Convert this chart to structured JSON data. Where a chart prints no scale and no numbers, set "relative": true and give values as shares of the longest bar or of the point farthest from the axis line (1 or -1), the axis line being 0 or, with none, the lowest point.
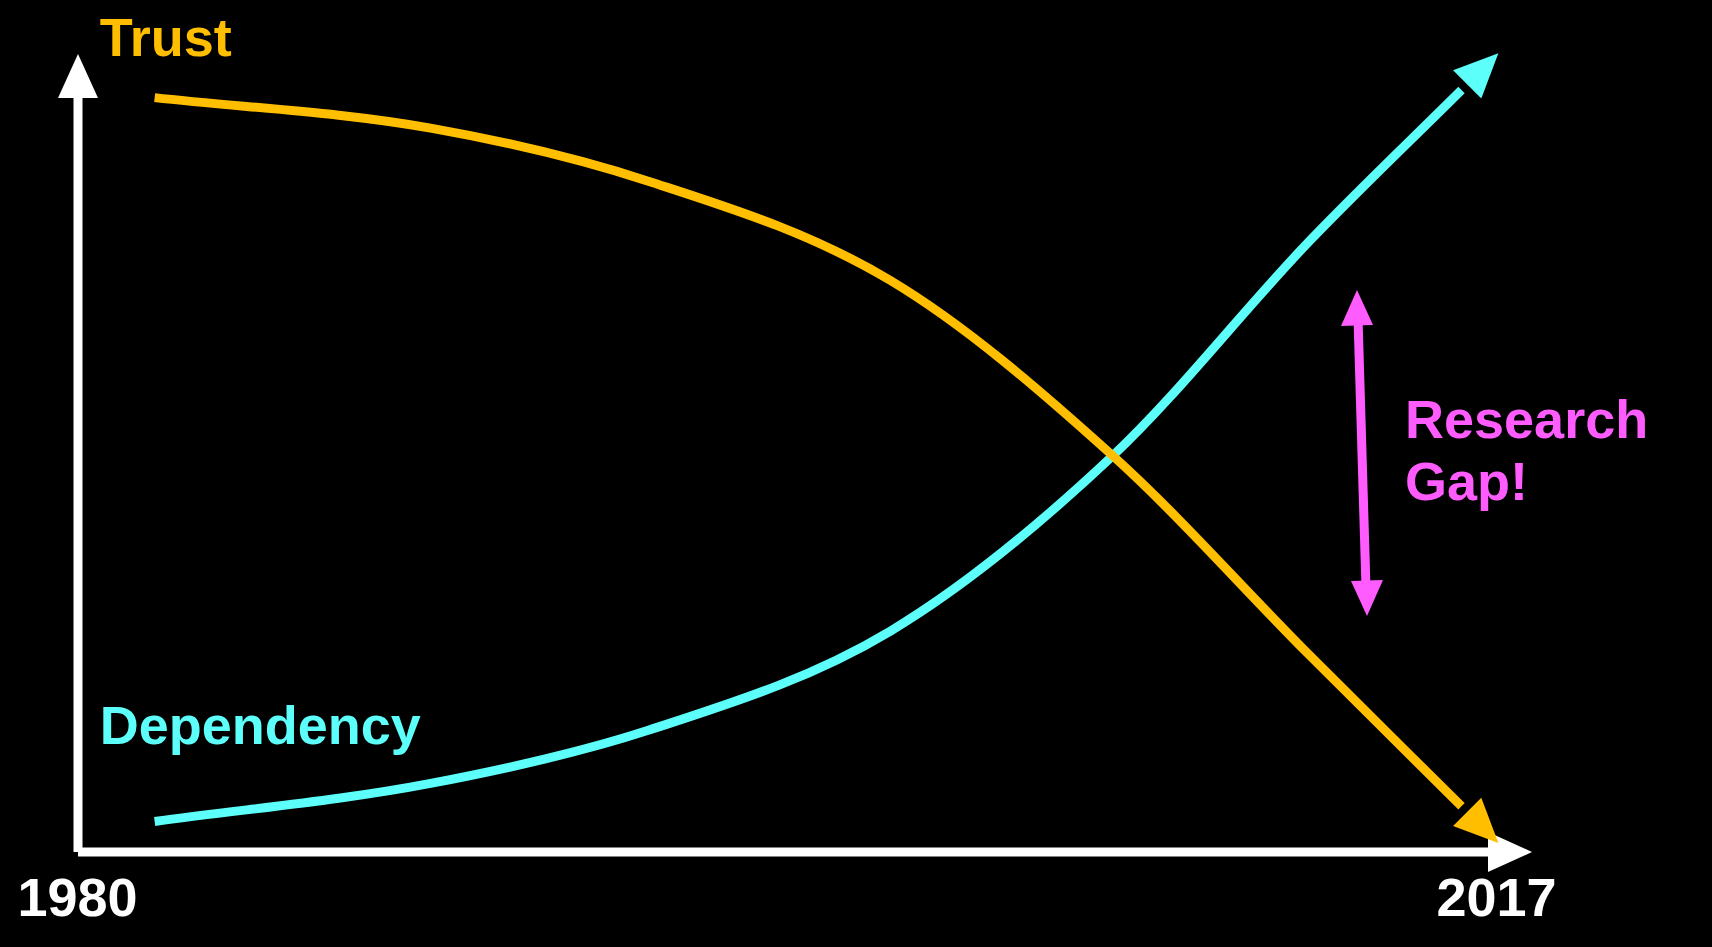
{
  "chart_data": {
    "type": "line",
    "relative": true,
    "xlim": [
      1980,
      2017
    ],
    "xticks": [
      1980,
      2017
    ],
    "grid": false,
    "legend": false,
    "marker": "none",
    "line_style": "solid",
    "annotations": [
      "Research Gap!"
    ],
    "series": [
      {
        "name": "Trust",
        "color": "#ffbf00",
        "x": [
          1982.0,
          1989.2,
          1994.9,
          2001.2,
          2007.0,
          2012.1,
          2016.1
        ],
        "values": [
          0.99,
          0.95,
          0.88,
          0.75,
          0.52,
          0.26,
          0.06
        ]
      },
      {
        "name": "Dependency",
        "color": "#5cfffa",
        "x": [
          1982.0,
          1989.2,
          1994.9,
          2001.2,
          2007.0,
          2012.1,
          2016.1
        ],
        "values": [
          0.04,
          0.09,
          0.16,
          0.29,
          0.52,
          0.8,
          1.0
        ]
      }
    ]
  }
}
